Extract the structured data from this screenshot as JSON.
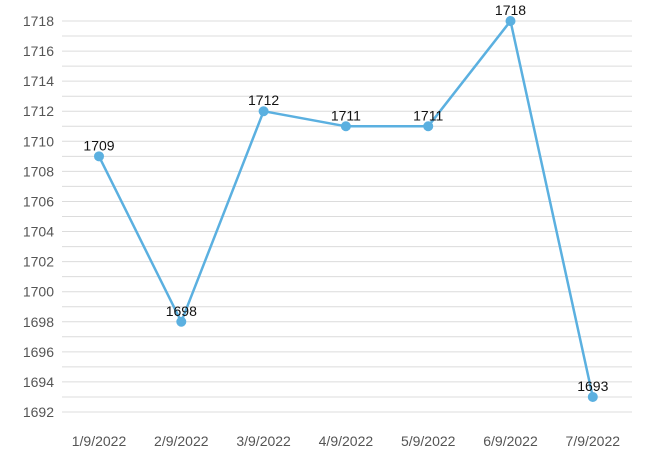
{
  "chart_data": {
    "type": "line",
    "categories": [
      "1/9/2022",
      "2/9/2022",
      "3/9/2022",
      "4/9/2022",
      "5/9/2022",
      "6/9/2022",
      "7/9/2022"
    ],
    "series": [
      {
        "values": [
          1709,
          1698,
          1712,
          1711,
          1711,
          1718,
          1693
        ]
      }
    ],
    "data_labels": [
      "1709",
      "1698",
      "1712",
      "1711",
      "1711",
      "1718",
      "1693"
    ],
    "y_ticks": [
      1692,
      1694,
      1696,
      1698,
      1700,
      1702,
      1704,
      1706,
      1708,
      1710,
      1712,
      1714,
      1716,
      1718
    ],
    "ylim": [
      1692,
      1718
    ],
    "grid": true,
    "legend": "none",
    "line_color": "#5BB0E0",
    "grid_color": "#dcdcdc"
  }
}
